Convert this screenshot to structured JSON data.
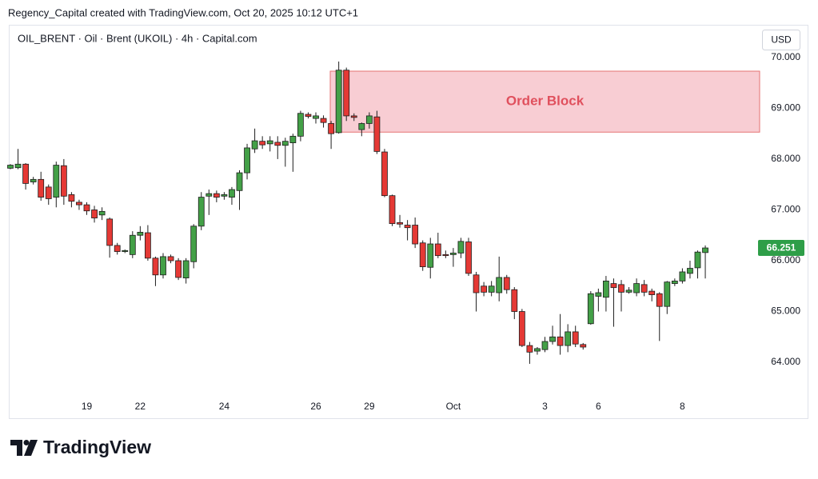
{
  "chart_data": {
    "type": "candlestick",
    "header": "Regency_Capital created with TradingView.com, Oct 20, 2025 10:12 UTC+1",
    "title": "OIL_BRENT · Oil · Brent (UKOIL) · 4h · Capital.com",
    "currency": "USD",
    "logo": "TradingView",
    "up_color": "#43a047",
    "down_color": "#e53935",
    "grid": false,
    "ylim": [
      63.34,
      70.58
    ],
    "yticks": [
      {
        "value": 64,
        "label": "64.000"
      },
      {
        "value": 65,
        "label": "65.000"
      },
      {
        "value": 66,
        "label": "66.000"
      },
      {
        "value": 67,
        "label": "67.000"
      },
      {
        "value": 68,
        "label": "68.000"
      },
      {
        "value": 69,
        "label": "69.000"
      },
      {
        "value": 70,
        "label": "70.000"
      }
    ],
    "last_price": {
      "value": 66.251,
      "label": "66.251",
      "color": "#2e9e48"
    },
    "order_block": {
      "label": "Order Block",
      "y_top": 69.73,
      "y_bottom": 68.53,
      "color": "#f8cdd3",
      "border": "#e57373",
      "text_color": "#e0505d"
    },
    "categories": [
      null,
      null,
      null,
      null,
      null,
      null,
      null,
      null,
      null,
      null,
      "19",
      null,
      null,
      null,
      null,
      null,
      null,
      "22",
      null,
      null,
      null,
      null,
      null,
      null,
      null,
      null,
      null,
      null,
      "24",
      null,
      null,
      null,
      null,
      null,
      null,
      null,
      null,
      null,
      null,
      null,
      "26",
      null,
      null,
      null,
      null,
      null,
      null,
      "29",
      null,
      null,
      null,
      null,
      null,
      null,
      null,
      null,
      null,
      null,
      "Oct",
      null,
      null,
      null,
      null,
      null,
      null,
      null,
      null,
      null,
      null,
      null,
      "3",
      null,
      null,
      null,
      null,
      null,
      null,
      "6",
      null,
      null,
      null,
      null,
      null,
      null,
      null,
      null,
      null,
      null,
      "8",
      null,
      null,
      null
    ],
    "open": [
      67.82,
      67.83,
      67.9,
      67.55,
      67.6,
      67.45,
      67.25,
      67.87,
      67.3,
      67.15,
      67.1,
      67.0,
      66.9,
      66.82,
      66.3,
      66.18,
      66.12,
      66.5,
      66.55,
      66.05,
      65.72,
      66.08,
      66.0,
      65.66,
      65.98,
      66.68,
      67.27,
      67.32,
      67.27,
      67.25,
      67.38,
      67.73,
      68.2,
      68.35,
      68.3,
      68.33,
      68.27,
      68.32,
      68.45,
      68.88,
      68.8,
      68.8,
      68.7,
      68.52,
      69.75,
      68.85,
      68.58,
      68.7,
      68.83,
      68.14,
      67.28,
      66.75,
      66.7,
      66.7,
      66.35,
      65.87,
      66.33,
      66.12,
      66.12,
      66.15,
      66.37,
      65.72,
      65.5,
      65.38,
      65.37,
      65.67,
      65.43,
      65.0,
      64.33,
      64.22,
      64.25,
      64.41,
      64.5,
      64.33,
      64.6,
      64.35,
      64.76,
      65.3,
      65.28,
      65.55,
      65.53,
      65.38,
      65.37,
      65.53,
      65.4,
      65.35,
      65.1,
      65.55,
      65.6,
      65.75,
      65.86,
      66.16
    ],
    "high": [
      67.9,
      68.2,
      67.92,
      67.65,
      67.75,
      67.5,
      67.95,
      68.0,
      67.35,
      67.2,
      67.15,
      67.08,
      67.05,
      66.85,
      66.35,
      66.22,
      66.58,
      66.68,
      66.7,
      66.08,
      66.15,
      66.12,
      66.05,
      66.05,
      66.72,
      67.35,
      67.4,
      67.38,
      67.35,
      67.45,
      67.78,
      68.3,
      68.6,
      68.45,
      68.45,
      68.45,
      68.42,
      68.5,
      68.95,
      68.92,
      68.92,
      68.86,
      68.75,
      69.92,
      69.8,
      68.9,
      68.72,
      68.92,
      68.95,
      68.2,
      67.3,
      66.9,
      66.8,
      66.85,
      66.4,
      66.45,
      66.55,
      66.2,
      66.25,
      66.45,
      66.45,
      65.78,
      65.58,
      65.6,
      66.08,
      65.72,
      65.48,
      65.05,
      64.4,
      64.3,
      64.5,
      64.72,
      64.95,
      64.75,
      64.72,
      64.38,
      65.4,
      65.45,
      65.7,
      65.65,
      65.62,
      65.48,
      65.65,
      65.62,
      65.45,
      65.38,
      65.6,
      65.65,
      65.85,
      66.0,
      66.2,
      66.3
    ],
    "low": [
      67.8,
      67.8,
      67.4,
      67.5,
      67.18,
      67.1,
      67.05,
      67.1,
      67.05,
      67.0,
      66.9,
      66.75,
      66.8,
      66.06,
      66.12,
      66.15,
      66.05,
      66.4,
      66.0,
      65.5,
      65.65,
      65.95,
      65.62,
      65.55,
      65.85,
      66.6,
      66.9,
      67.15,
      67.2,
      67.1,
      67.0,
      67.6,
      68.12,
      68.2,
      68.15,
      68.0,
      67.85,
      67.75,
      68.35,
      68.8,
      68.7,
      68.62,
      68.2,
      68.5,
      68.75,
      68.75,
      68.45,
      68.6,
      68.1,
      67.25,
      66.68,
      66.65,
      66.4,
      66.25,
      65.8,
      65.65,
      66.05,
      66.05,
      65.88,
      66.05,
      65.7,
      65.0,
      65.3,
      65.3,
      65.2,
      65.35,
      64.85,
      64.3,
      63.97,
      64.15,
      64.2,
      64.35,
      64.15,
      64.2,
      64.3,
      64.25,
      64.74,
      65.0,
      65.0,
      64.7,
      65.0,
      65.35,
      65.3,
      65.3,
      65.2,
      64.42,
      64.95,
      65.5,
      65.55,
      65.65,
      65.65,
      65.65
    ],
    "close": [
      67.88,
      67.9,
      67.52,
      67.6,
      67.25,
      67.22,
      67.88,
      67.27,
      67.17,
      67.1,
      66.98,
      66.84,
      66.97,
      66.3,
      66.18,
      66.2,
      66.5,
      66.56,
      66.05,
      65.72,
      66.08,
      66.0,
      65.67,
      66.0,
      66.68,
      67.25,
      67.32,
      67.25,
      67.3,
      67.4,
      67.73,
      68.22,
      68.36,
      68.28,
      68.36,
      68.27,
      68.35,
      68.45,
      68.9,
      68.84,
      68.85,
      68.72,
      68.5,
      69.75,
      68.85,
      68.82,
      68.7,
      68.85,
      68.15,
      67.28,
      66.73,
      66.72,
      66.65,
      66.33,
      65.88,
      66.33,
      66.1,
      66.1,
      66.15,
      66.38,
      65.75,
      65.37,
      65.38,
      65.5,
      65.67,
      65.43,
      65.0,
      64.33,
      64.2,
      64.27,
      64.41,
      64.5,
      64.33,
      64.6,
      64.36,
      64.3,
      65.35,
      65.37,
      65.6,
      65.47,
      65.38,
      65.42,
      65.55,
      65.38,
      65.33,
      65.1,
      65.58,
      65.6,
      65.78,
      65.85,
      66.17,
      66.251
    ]
  }
}
